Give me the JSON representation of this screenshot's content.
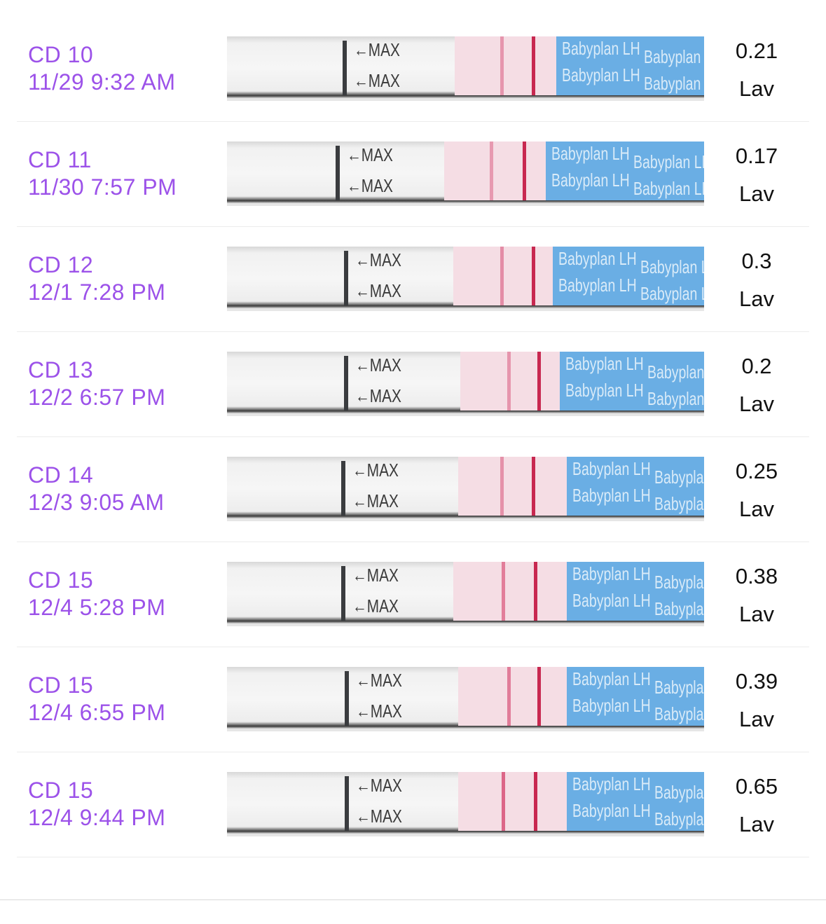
{
  "accent_color": "#9c52e9",
  "strip_label": "MAX",
  "brand_text": "Babyplan LH",
  "rows": [
    {
      "day": "CD 10",
      "time": "11/29 9:32 AM",
      "value": "0.21",
      "unit": "Lav",
      "test_line": 0.35,
      "control_line": 1.0
    },
    {
      "day": "CD 11",
      "time": "11/30 7:57 PM",
      "value": "0.17",
      "unit": "Lav",
      "test_line": 0.3,
      "control_line": 1.0
    },
    {
      "day": "CD 12",
      "time": "12/1 7:28 PM",
      "value": "0.3",
      "unit": "Lav",
      "test_line": 0.45,
      "control_line": 1.0
    },
    {
      "day": "CD 13",
      "time": "12/2 6:57 PM",
      "value": "0.2",
      "unit": "Lav",
      "test_line": 0.35,
      "control_line": 1.0
    },
    {
      "day": "CD 14",
      "time": "12/3 9:05 AM",
      "value": "0.25",
      "unit": "Lav",
      "test_line": 0.4,
      "control_line": 1.0
    },
    {
      "day": "CD 15",
      "time": "12/4 5:28 PM",
      "value": "0.38",
      "unit": "Lav",
      "test_line": 0.6,
      "control_line": 1.0
    },
    {
      "day": "CD 15",
      "time": "12/4 6:55 PM",
      "value": "0.39",
      "unit": "Lav",
      "test_line": 0.62,
      "control_line": 1.0
    },
    {
      "day": "CD 15",
      "time": "12/4 9:44 PM",
      "value": "0.65",
      "unit": "Lav",
      "test_line": 0.85,
      "control_line": 1.0
    }
  ]
}
